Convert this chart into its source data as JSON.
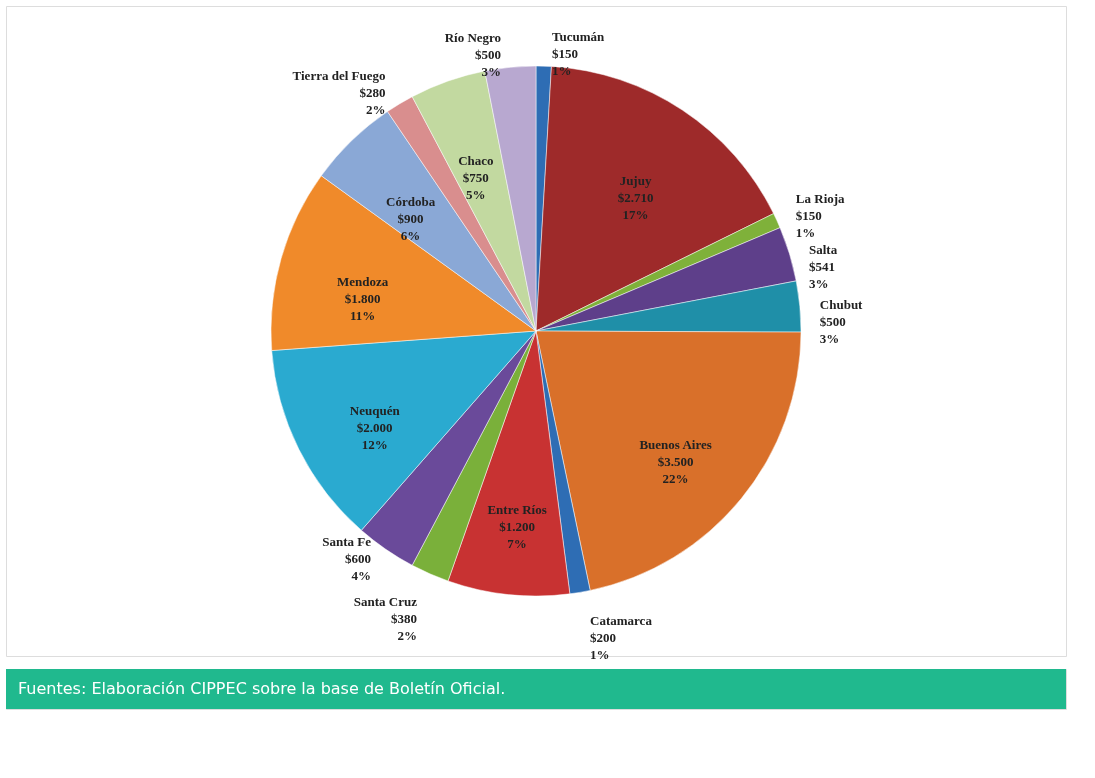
{
  "chart_data": {
    "type": "pie",
    "categories": [
      "Tucumán",
      "Jujuy",
      "La Rioja",
      "Salta",
      "Chubut",
      "Buenos Aires",
      "Catamarca",
      "Entre Ríos",
      "Santa Cruz",
      "Santa Fe",
      "Neuquén",
      "Mendoza",
      "Córdoba",
      "Tierra del Fuego",
      "Chaco",
      "Río Negro"
    ],
    "values": [
      150,
      2710,
      150,
      541,
      500,
      3500,
      200,
      1200,
      380,
      600,
      2000,
      1800,
      900,
      280,
      750,
      500
    ],
    "value_labels": [
      "$150\n1%",
      "$2.710\n17%",
      "$150\n1%",
      "$541\n3%",
      "$500\n3%",
      "$3.500\n22%",
      "$200\n1%",
      "$1.200\n7%",
      "$380\n2%",
      "$600\n4%",
      "$2.000\n12%",
      "$1.800\n11%",
      "$900\n6%",
      "$280\n2%",
      "$750\n5%",
      "$500\n3%"
    ],
    "colors": [
      "#2e6db4",
      "#9e2a2a",
      "#7fb13a",
      "#5e3f8a",
      "#1f8fa8",
      "#d9702a",
      "#2e6db4",
      "#c83232",
      "#7ab03a",
      "#6a4a9a",
      "#2aaad0",
      "#f08a2a",
      "#8aa8d6",
      "#d98e8e",
      "#c2d9a0",
      "#b8a8d0"
    ],
    "annotations": [
      "Fuentes: Elaboración CIPPEC sobre la base de Boletín Oficial."
    ],
    "legend": false
  }
}
